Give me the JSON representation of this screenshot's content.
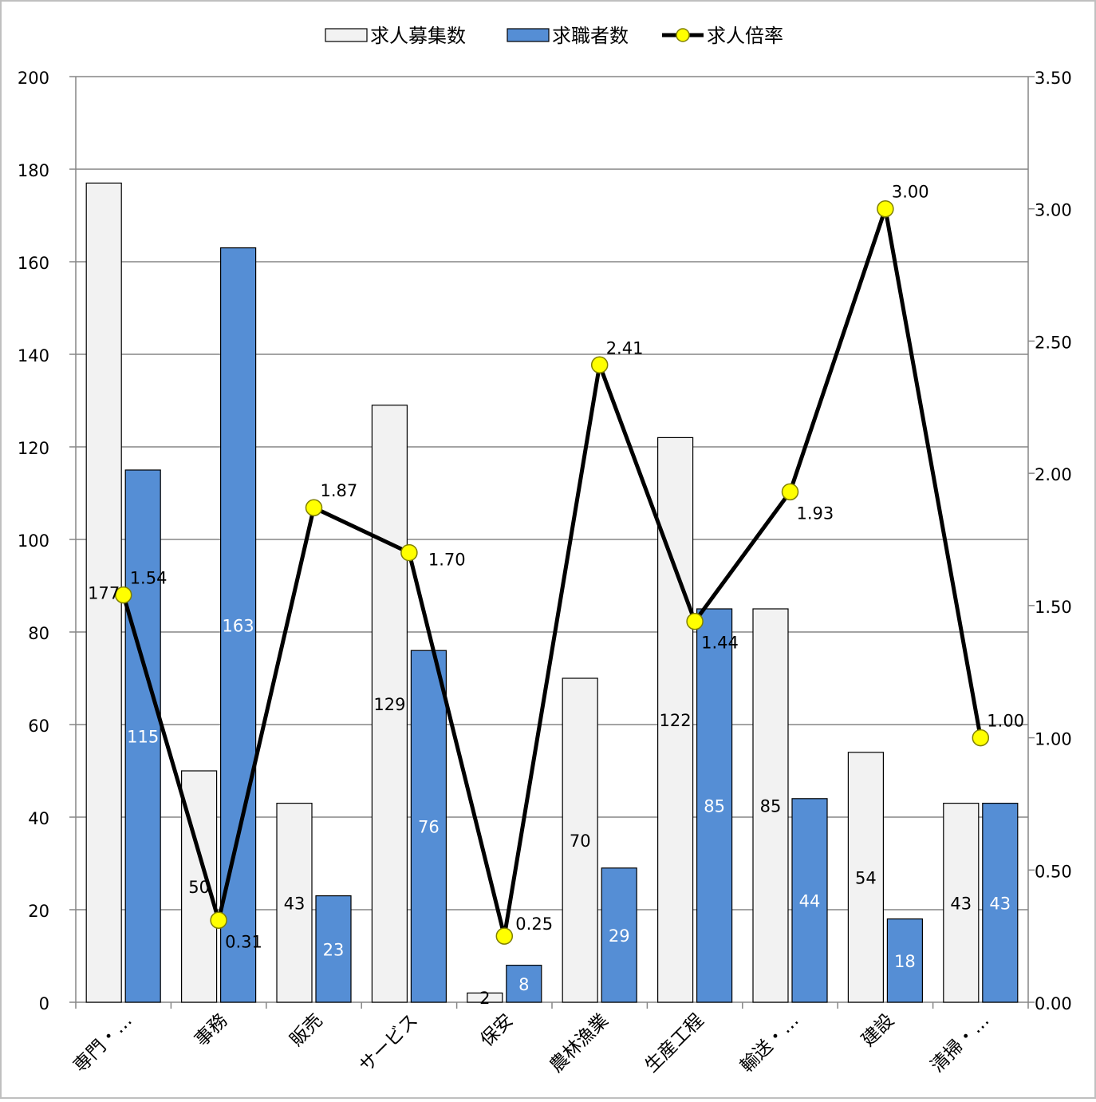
{
  "chart_data": {
    "type": "bar",
    "categories": [
      "専門・…",
      "事務",
      "販売",
      "サービス",
      "保安",
      "農林漁業",
      "生産工程",
      "輸送・…",
      "建設",
      "清掃・…"
    ],
    "series": [
      {
        "name": "求人募集数",
        "type": "bar",
        "axis": "left",
        "color": "#f2f2f2",
        "label_color": "#000000",
        "values": [
          177,
          50,
          43,
          129,
          2,
          70,
          122,
          85,
          54,
          43
        ]
      },
      {
        "name": "求職者数",
        "type": "bar",
        "axis": "left",
        "color": "#558ed5",
        "label_color": "#ffffff",
        "values": [
          115,
          163,
          23,
          76,
          8,
          29,
          85,
          44,
          18,
          43
        ]
      },
      {
        "name": "求人倍率",
        "type": "line",
        "axis": "right",
        "color": "#000000",
        "marker_color": "#ffff00",
        "values": [
          1.54,
          0.31,
          1.87,
          1.7,
          0.25,
          2.41,
          1.44,
          1.93,
          3.0,
          1.0
        ],
        "labels": [
          "1.54",
          "0.31",
          "1.87",
          "1.70",
          "0.25",
          "2.41",
          "1.44",
          "1.93",
          "3.00",
          "1.00"
        ]
      }
    ],
    "y_left": {
      "min": 0,
      "max": 200,
      "ticks": [
        "0",
        "20",
        "40",
        "60",
        "80",
        "100",
        "120",
        "140",
        "160",
        "180",
        "200"
      ]
    },
    "y_right": {
      "min": 0,
      "max": 3.5,
      "ticks": [
        "0.00",
        "0.50",
        "1.00",
        "1.50",
        "2.00",
        "2.50",
        "3.00",
        "3.50"
      ]
    },
    "grid": true,
    "legend_position": "top"
  }
}
